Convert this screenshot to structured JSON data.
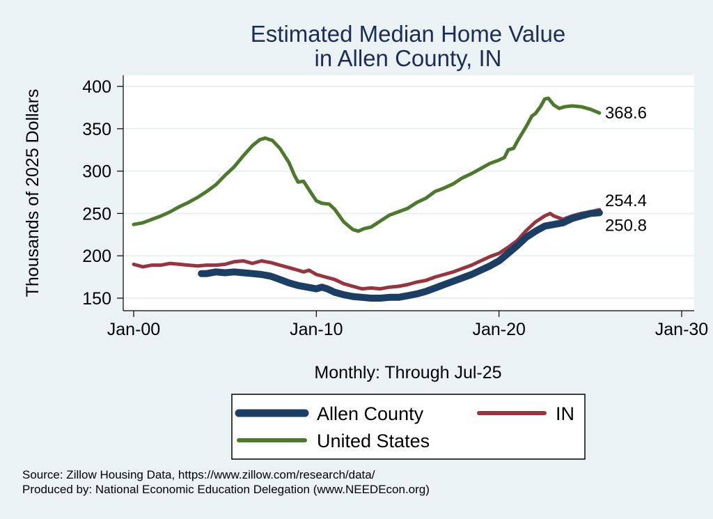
{
  "chart_data": {
    "type": "line",
    "title": [
      "Estimated Median Home Value",
      "in Allen County, IN"
    ],
    "ylabel": "Thousands of 2025 Dollars",
    "xlabel": "Monthly: Through Jul-25",
    "xlim": [
      2000,
      2030
    ],
    "ylim": [
      150,
      400
    ],
    "xticks": [
      {
        "value": 2000,
        "label": "Jan-00"
      },
      {
        "value": 2010,
        "label": "Jan-10"
      },
      {
        "value": 2020,
        "label": "Jan-20"
      },
      {
        "value": 2030,
        "label": "Jan-30"
      }
    ],
    "yticks": [
      {
        "value": 150,
        "label": "150"
      },
      {
        "value": 200,
        "label": "200"
      },
      {
        "value": 250,
        "label": "250"
      },
      {
        "value": 300,
        "label": "300"
      },
      {
        "value": 350,
        "label": "350"
      },
      {
        "value": 400,
        "label": "400"
      }
    ],
    "series": [
      {
        "name": "United States",
        "color": "#4c7a2c",
        "end_label": "368.6",
        "points": [
          [
            2000,
            237
          ],
          [
            2000.5,
            239
          ],
          [
            2001,
            243
          ],
          [
            2001.5,
            247
          ],
          [
            2002,
            252
          ],
          [
            2002.5,
            258
          ],
          [
            2003,
            263
          ],
          [
            2003.5,
            269
          ],
          [
            2004,
            276
          ],
          [
            2004.5,
            284
          ],
          [
            2005,
            295
          ],
          [
            2005.5,
            305
          ],
          [
            2006,
            318
          ],
          [
            2006.5,
            330
          ],
          [
            2006.9,
            337
          ],
          [
            2007.2,
            339
          ],
          [
            2007.6,
            336
          ],
          [
            2008,
            327
          ],
          [
            2008.5,
            310
          ],
          [
            2008.8,
            295
          ],
          [
            2009,
            287
          ],
          [
            2009.3,
            288
          ],
          [
            2009.6,
            278
          ],
          [
            2010,
            265
          ],
          [
            2010.3,
            262
          ],
          [
            2010.7,
            261
          ],
          [
            2011,
            255
          ],
          [
            2011.5,
            240
          ],
          [
            2012,
            231
          ],
          [
            2012.3,
            229
          ],
          [
            2012.6,
            232
          ],
          [
            2013,
            234
          ],
          [
            2013.5,
            241
          ],
          [
            2014,
            248
          ],
          [
            2014.5,
            252
          ],
          [
            2015,
            256
          ],
          [
            2015.5,
            263
          ],
          [
            2016,
            268
          ],
          [
            2016.5,
            276
          ],
          [
            2017,
            280
          ],
          [
            2017.5,
            285
          ],
          [
            2018,
            292
          ],
          [
            2018.5,
            297
          ],
          [
            2019,
            303
          ],
          [
            2019.5,
            309
          ],
          [
            2020,
            313
          ],
          [
            2020.3,
            316
          ],
          [
            2020.5,
            325
          ],
          [
            2020.8,
            327
          ],
          [
            2021,
            335
          ],
          [
            2021.5,
            353
          ],
          [
            2021.8,
            365
          ],
          [
            2022,
            368
          ],
          [
            2022.3,
            377
          ],
          [
            2022.5,
            385
          ],
          [
            2022.7,
            386
          ],
          [
            2023,
            378
          ],
          [
            2023.3,
            374
          ],
          [
            2023.6,
            376
          ],
          [
            2024,
            377
          ],
          [
            2024.5,
            376
          ],
          [
            2025,
            373
          ],
          [
            2025.5,
            368.6
          ]
        ]
      },
      {
        "name": "IN",
        "color": "#97343d",
        "end_label": "254.4",
        "points": [
          [
            2000,
            190
          ],
          [
            2000.5,
            187
          ],
          [
            2001,
            189
          ],
          [
            2001.5,
            189
          ],
          [
            2002,
            191
          ],
          [
            2002.5,
            190
          ],
          [
            2003,
            189
          ],
          [
            2003.5,
            188
          ],
          [
            2004,
            189
          ],
          [
            2004.5,
            189
          ],
          [
            2005,
            190
          ],
          [
            2005.5,
            193
          ],
          [
            2006,
            194
          ],
          [
            2006.5,
            191
          ],
          [
            2007,
            194
          ],
          [
            2007.5,
            192
          ],
          [
            2008,
            189
          ],
          [
            2008.5,
            186
          ],
          [
            2009,
            183
          ],
          [
            2009.3,
            181
          ],
          [
            2009.6,
            183
          ],
          [
            2010,
            178
          ],
          [
            2010.5,
            175
          ],
          [
            2011,
            172
          ],
          [
            2011.5,
            167
          ],
          [
            2012,
            164
          ],
          [
            2012.5,
            161
          ],
          [
            2013,
            162
          ],
          [
            2013.5,
            161
          ],
          [
            2014,
            163
          ],
          [
            2014.5,
            164
          ],
          [
            2015,
            166
          ],
          [
            2015.5,
            169
          ],
          [
            2016,
            171
          ],
          [
            2016.5,
            175
          ],
          [
            2017,
            178
          ],
          [
            2017.5,
            181
          ],
          [
            2018,
            185
          ],
          [
            2018.5,
            189
          ],
          [
            2019,
            194
          ],
          [
            2019.5,
            199
          ],
          [
            2020,
            203
          ],
          [
            2020.5,
            210
          ],
          [
            2021,
            218
          ],
          [
            2021.5,
            230
          ],
          [
            2022,
            240
          ],
          [
            2022.5,
            247
          ],
          [
            2022.8,
            250
          ],
          [
            2023,
            247
          ],
          [
            2023.5,
            243
          ],
          [
            2024,
            247
          ],
          [
            2024.5,
            250
          ],
          [
            2025,
            252
          ],
          [
            2025.5,
            254.4
          ]
        ]
      },
      {
        "name": "Allen County",
        "color": "#1b3f64",
        "end_label": "250.8",
        "points": [
          [
            2003.7,
            179
          ],
          [
            2004,
            179
          ],
          [
            2004.5,
            181
          ],
          [
            2005,
            180
          ],
          [
            2005.5,
            181
          ],
          [
            2006,
            180
          ],
          [
            2006.5,
            179
          ],
          [
            2007,
            178
          ],
          [
            2007.5,
            176
          ],
          [
            2008,
            172
          ],
          [
            2008.5,
            168
          ],
          [
            2009,
            165
          ],
          [
            2009.5,
            163
          ],
          [
            2010,
            161
          ],
          [
            2010.3,
            163
          ],
          [
            2010.6,
            161
          ],
          [
            2011,
            157
          ],
          [
            2011.5,
            154
          ],
          [
            2012,
            152
          ],
          [
            2012.5,
            151
          ],
          [
            2013,
            150
          ],
          [
            2013.5,
            150
          ],
          [
            2014,
            151
          ],
          [
            2014.5,
            151
          ],
          [
            2015,
            153
          ],
          [
            2015.5,
            155
          ],
          [
            2016,
            158
          ],
          [
            2016.5,
            162
          ],
          [
            2017,
            166
          ],
          [
            2017.5,
            170
          ],
          [
            2018,
            174
          ],
          [
            2018.5,
            178
          ],
          [
            2019,
            183
          ],
          [
            2019.5,
            188
          ],
          [
            2020,
            194
          ],
          [
            2020.5,
            203
          ],
          [
            2021,
            212
          ],
          [
            2021.5,
            222
          ],
          [
            2022,
            229
          ],
          [
            2022.5,
            235
          ],
          [
            2023,
            237
          ],
          [
            2023.5,
            239
          ],
          [
            2024,
            244
          ],
          [
            2024.5,
            247
          ],
          [
            2025,
            250
          ],
          [
            2025.5,
            250.8
          ]
        ]
      }
    ],
    "legend": [
      {
        "name": "Allen County",
        "color": "#1b3f64"
      },
      {
        "name": "IN",
        "color": "#97343d"
      },
      {
        "name": "United States",
        "color": "#4c7a2c"
      }
    ]
  },
  "source_lines": [
    "Source: Zillow Housing Data, https://www.zillow.com/research/data/",
    "Produced by: National Economic Education Delegation (www.NEEDEcon.org)"
  ]
}
